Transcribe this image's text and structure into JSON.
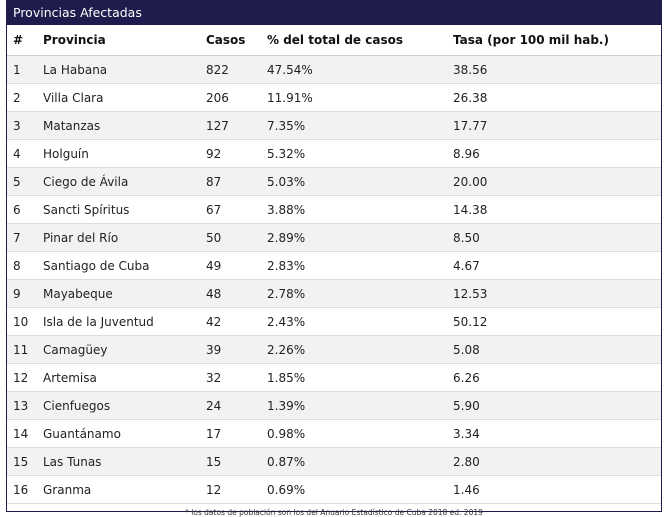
{
  "panel": {
    "title": "Provincias Afectadas"
  },
  "table": {
    "headers": {
      "num": "#",
      "provincia": "Provincia",
      "casos": "Casos",
      "pct": "% del total de casos",
      "tasa": "Tasa (por 100 mil hab.)"
    },
    "rows": [
      {
        "num": "1",
        "provincia": "La Habana",
        "casos": "822",
        "pct": "47.54%",
        "tasa": "38.56"
      },
      {
        "num": "2",
        "provincia": "Villa Clara",
        "casos": "206",
        "pct": "11.91%",
        "tasa": "26.38"
      },
      {
        "num": "3",
        "provincia": "Matanzas",
        "casos": "127",
        "pct": "7.35%",
        "tasa": "17.77"
      },
      {
        "num": "4",
        "provincia": "Holguín",
        "casos": "92",
        "pct": "5.32%",
        "tasa": "8.96"
      },
      {
        "num": "5",
        "provincia": "Ciego de Ávila",
        "casos": "87",
        "pct": "5.03%",
        "tasa": "20.00"
      },
      {
        "num": "6",
        "provincia": "Sancti Spíritus",
        "casos": "67",
        "pct": "3.88%",
        "tasa": "14.38"
      },
      {
        "num": "7",
        "provincia": "Pinar del Río",
        "casos": "50",
        "pct": "2.89%",
        "tasa": "8.50"
      },
      {
        "num": "8",
        "provincia": "Santiago de Cuba",
        "casos": "49",
        "pct": "2.83%",
        "tasa": "4.67"
      },
      {
        "num": "9",
        "provincia": "Mayabeque",
        "casos": "48",
        "pct": "2.78%",
        "tasa": "12.53"
      },
      {
        "num": "10",
        "provincia": "Isla de la Juventud",
        "casos": "42",
        "pct": "2.43%",
        "tasa": "50.12"
      },
      {
        "num": "11",
        "provincia": "Camagüey",
        "casos": "39",
        "pct": "2.26%",
        "tasa": "5.08"
      },
      {
        "num": "12",
        "provincia": "Artemisa",
        "casos": "32",
        "pct": "1.85%",
        "tasa": "6.26"
      },
      {
        "num": "13",
        "provincia": "Cienfuegos",
        "casos": "24",
        "pct": "1.39%",
        "tasa": "5.90"
      },
      {
        "num": "14",
        "provincia": "Guantánamo",
        "casos": "17",
        "pct": "0.98%",
        "tasa": "3.34"
      },
      {
        "num": "15",
        "provincia": "Las Tunas",
        "casos": "15",
        "pct": "0.87%",
        "tasa": "2.80"
      },
      {
        "num": "16",
        "provincia": "Granma",
        "casos": "12",
        "pct": "0.69%",
        "tasa": "1.46"
      }
    ]
  },
  "footnote": "* los datos de población son los del Anuario Estadístico de Cuba 2018 ed. 2019",
  "colors": {
    "header_bg": "#1f1b4d",
    "row_alt": "#f2f2f2"
  }
}
